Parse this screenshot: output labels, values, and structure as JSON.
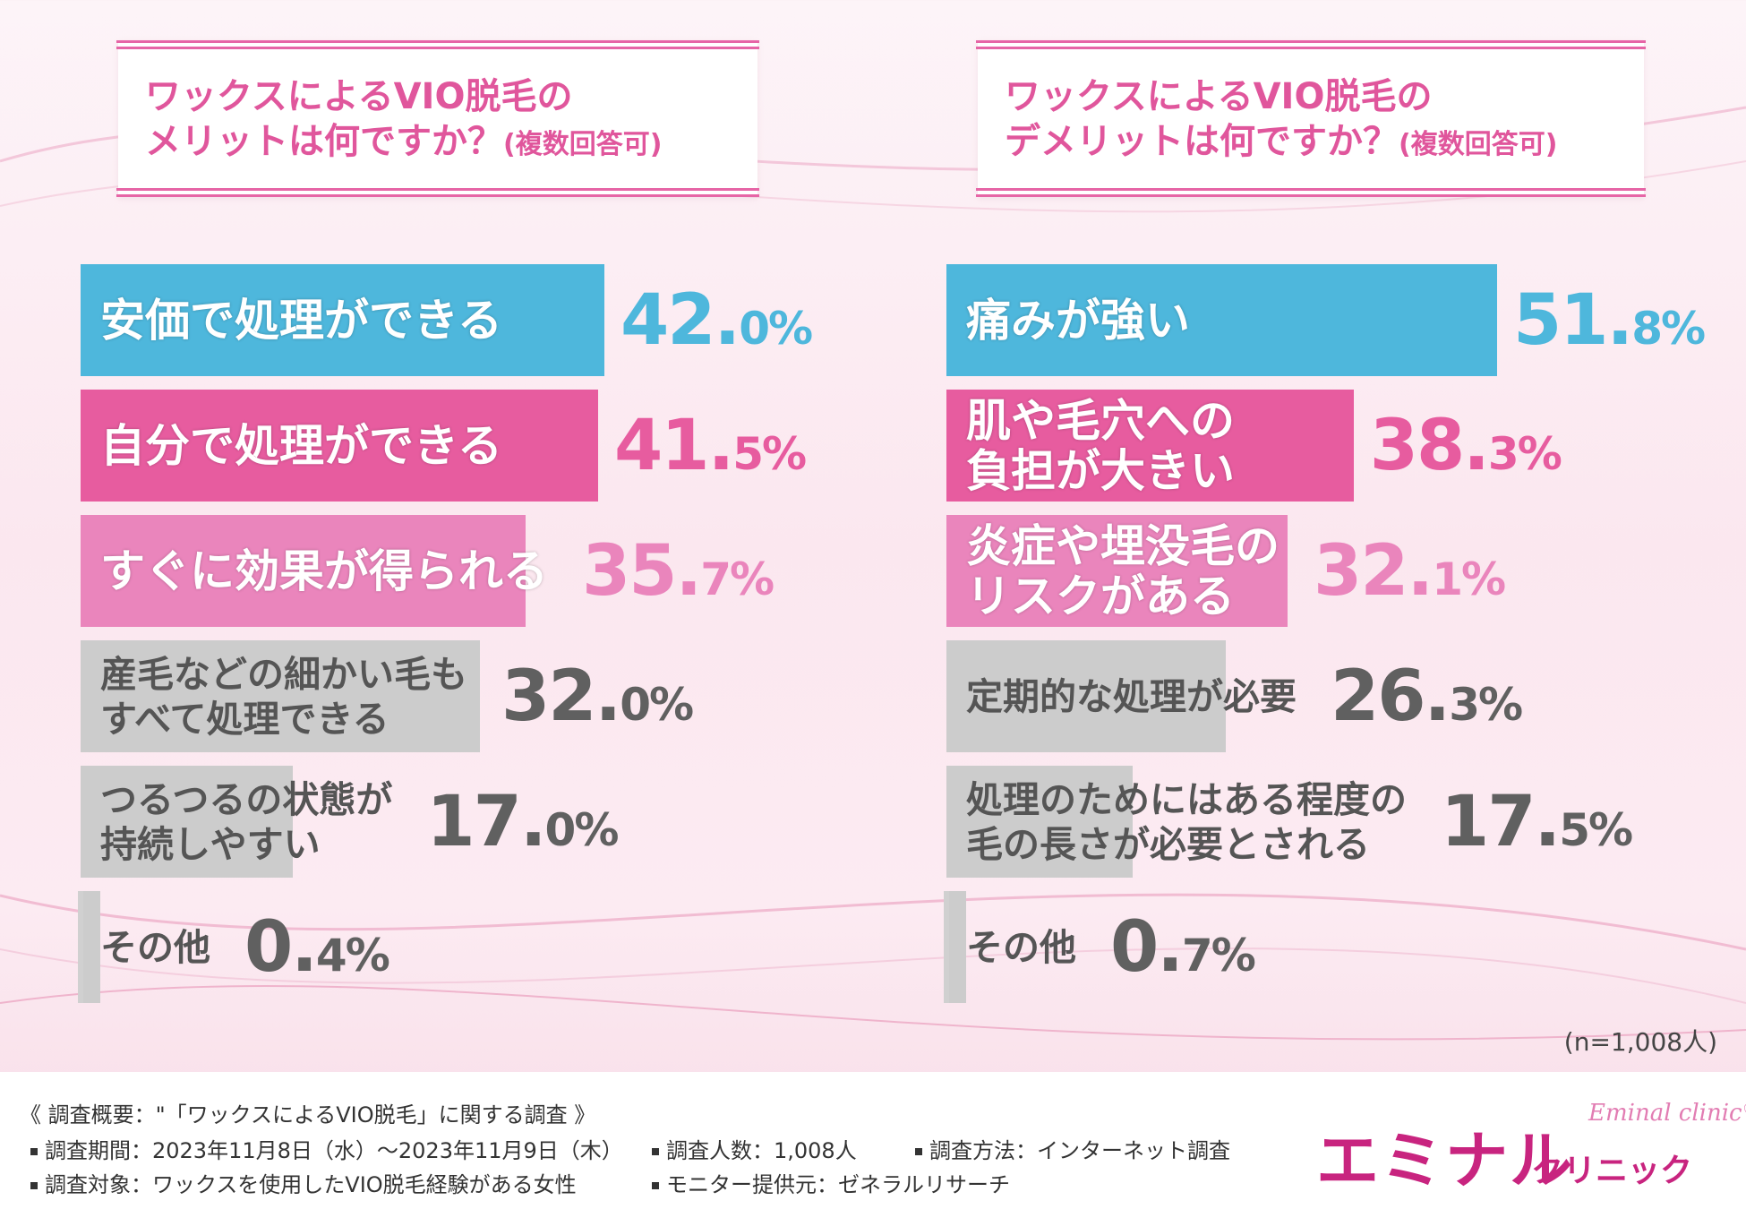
{
  "colors": {
    "blue": "#4eb7dc",
    "pink": "#e75c9f",
    "light_pink": "#ea85bc",
    "gray": "#cccccc",
    "white_text": "#ffffff",
    "dark_text": "#555555"
  },
  "chart_data": [
    {
      "type": "bar",
      "orientation": "horizontal",
      "title_line1": "ワックスによるVIO脱毛の",
      "title_line2": "メリットは何ですか？",
      "title_note": "(複数回答可)",
      "bars": [
        {
          "label": [
            "安価で処理ができる"
          ],
          "value": 42.0,
          "int": "42.",
          "dec": "0%",
          "color": "#4eb7dc",
          "text_color": "#4eb7dc",
          "label_style": "white"
        },
        {
          "label": [
            "自分で処理ができる"
          ],
          "value": 41.5,
          "int": "41.",
          "dec": "5%",
          "color": "#e75c9f",
          "text_color": "#e75c9f",
          "label_style": "white"
        },
        {
          "label": [
            "すぐに効果が得られる"
          ],
          "value": 35.7,
          "int": "35.",
          "dec": "7%",
          "color": "#ea85bc",
          "text_color": "#ea85bc",
          "label_style": "white"
        },
        {
          "label": [
            "産毛などの細かい毛も",
            "すべて処理できる"
          ],
          "value": 32.0,
          "int": "32.",
          "dec": "0%",
          "color": "#cccccc",
          "text_color": "#606060",
          "label_style": "dark"
        },
        {
          "label": [
            "つるつるの状態が",
            "持続しやすい"
          ],
          "value": 17.0,
          "int": "17.",
          "dec": "0%",
          "color": "#cccccc",
          "text_color": "#606060",
          "label_style": "dark"
        },
        {
          "label": [
            "その他"
          ],
          "value": 0.4,
          "int": "0.",
          "dec": "4%",
          "color": "#cccccc",
          "text_color": "#606060",
          "label_style": "dark"
        }
      ]
    },
    {
      "type": "bar",
      "orientation": "horizontal",
      "title_line1": "ワックスによるVIO脱毛の",
      "title_line2": "デメリットは何ですか？",
      "title_note": "(複数回答可)",
      "bars": [
        {
          "label": [
            "痛みが強い"
          ],
          "value": 51.8,
          "int": "51.",
          "dec": "8%",
          "color": "#4eb7dc",
          "text_color": "#4eb7dc",
          "label_style": "white"
        },
        {
          "label": [
            "肌や毛穴への",
            "負担が大きい"
          ],
          "value": 38.3,
          "int": "38.",
          "dec": "3%",
          "color": "#e75c9f",
          "text_color": "#e75c9f",
          "label_style": "white"
        },
        {
          "label": [
            "炎症や埋没毛の",
            "リスクがある"
          ],
          "value": 32.1,
          "int": "32.",
          "dec": "1%",
          "color": "#ea85bc",
          "text_color": "#ea85bc",
          "label_style": "white"
        },
        {
          "label": [
            "定期的な処理が必要"
          ],
          "value": 26.3,
          "int": "26.",
          "dec": "3%",
          "color": "#cccccc",
          "text_color": "#606060",
          "label_style": "dark"
        },
        {
          "label": [
            "処理のためにはある程度の",
            "毛の長さが必要とされる"
          ],
          "value": 17.5,
          "int": "17.",
          "dec": "5%",
          "color": "#cccccc",
          "text_color": "#606060",
          "label_style": "dark"
        },
        {
          "label": [
            "その他"
          ],
          "value": 0.7,
          "int": "0.",
          "dec": "7%",
          "color": "#cccccc",
          "text_color": "#606060",
          "label_style": "dark"
        }
      ]
    }
  ],
  "sample_size": "(n=1,008人)",
  "footer": {
    "title": "《 調査概要：\"「ワックスによるVIO脱毛」に関する調査 》",
    "period": "調査期間：2023年11月8日（水）～2023年11月9日（木）",
    "count": "調査人数：1,008人",
    "method": "調査方法：インターネット調査",
    "target": "調査対象：ワックスを使用したVIO脱毛経験がある女性",
    "provider": "モニター提供元：ゼネラルリサーチ"
  },
  "logo": {
    "main": "エミナル",
    "sub": "クリニック",
    "script": "Eminal clinic♡"
  }
}
